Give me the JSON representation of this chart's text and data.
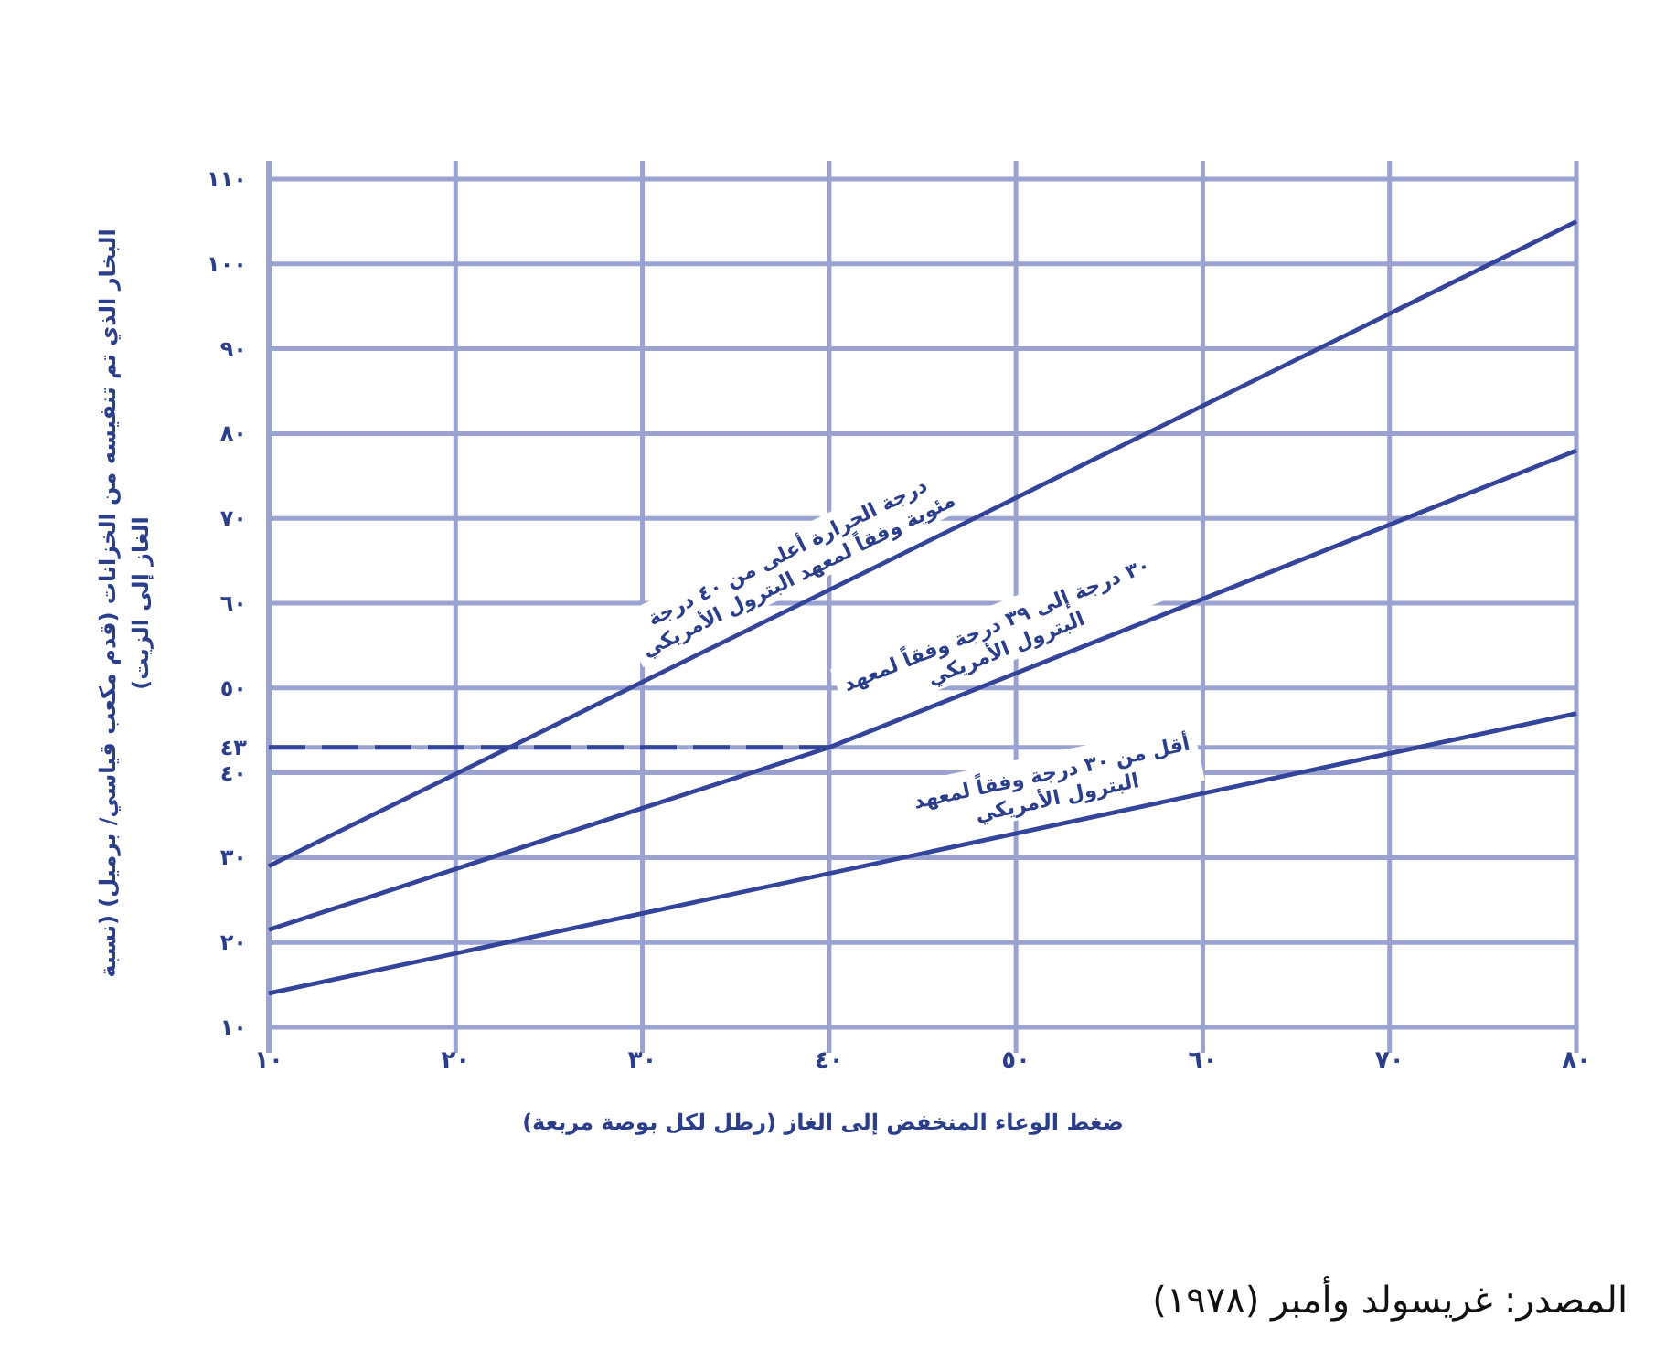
{
  "chart_data": {
    "type": "line",
    "xlabel": "ضغط الوعاء المنخفض إلى الغاز (رطل لكل بوصة مربعة)",
    "ylabel": "البخار الذي تم تنفيسه من الخزانات (قدم مكعب قياسي/ برميل) (نسبة الغاز إلى الزيت)",
    "xlim": [
      10,
      80
    ],
    "ylim": [
      10,
      110
    ],
    "xticks": [
      {
        "value": 10,
        "label": "١٠"
      },
      {
        "value": 20,
        "label": "٢٠"
      },
      {
        "value": 30,
        "label": "٣٠"
      },
      {
        "value": 40,
        "label": "٤٠"
      },
      {
        "value": 50,
        "label": "٥٠"
      },
      {
        "value": 60,
        "label": "٦٠"
      },
      {
        "value": 70,
        "label": "٧٠"
      },
      {
        "value": 80,
        "label": "٨٠"
      }
    ],
    "yticks": [
      {
        "value": 10,
        "label": "١٠"
      },
      {
        "value": 20,
        "label": "٢٠"
      },
      {
        "value": 30,
        "label": "٣٠"
      },
      {
        "value": 40,
        "label": "٤٠"
      },
      {
        "value": 43,
        "label": "٤٣"
      },
      {
        "value": 50,
        "label": "٥٠"
      },
      {
        "value": 60,
        "label": "٦٠"
      },
      {
        "value": 70,
        "label": "٧٠"
      },
      {
        "value": 80,
        "label": "٨٠"
      },
      {
        "value": 90,
        "label": "٩٠"
      },
      {
        "value": 100,
        "label": "١٠٠"
      },
      {
        "value": 110,
        "label": "١١٠"
      }
    ],
    "grid": true,
    "line_style": "solid",
    "series": [
      {
        "color": "#34449a",
        "x": [
          10,
          80
        ],
        "values": [
          29,
          105
        ]
      },
      {
        "color": "#34449a",
        "x": [
          10,
          40,
          80
        ],
        "values": [
          21.5,
          43,
          78
        ]
      },
      {
        "color": "#34449a",
        "x": [
          10,
          80
        ],
        "values": [
          14,
          47
        ]
      },
      {
        "color": "#34449a",
        "x": [
          10,
          40
        ],
        "values": [
          43,
          43
        ],
        "line_style": "dashed"
      }
    ],
    "annotations": [
      {
        "text": "درجة الحرارة أعلى من ٤٠ درجة مئوية وفقاً لمعهد البترول الأمريكي",
        "x": 39,
        "y": 60.5
      },
      {
        "text": "٣٠ درجة إلى ٣٩ درجة وفقاً لمعهد البترول الأمريكي",
        "x": 50,
        "y": 51.75
      },
      {
        "text": "أقل من ٣٠ درجة وفقاً لمعهد البترول الأمريكي",
        "x": 52.5,
        "y": 34
      },
      "المصدر: غريسولد وأمبر (١٩٧٨)"
    ]
  }
}
